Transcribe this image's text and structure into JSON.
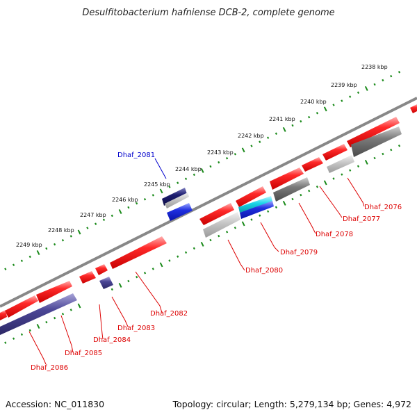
{
  "title": "Desulfitobacterium hafniense DCB-2, complete genome",
  "accession": "Accession: NC_011830",
  "summary": "Topology: circular; Length: 5,279,134 bp; Genes: 4,972",
  "colors": {
    "backbone": "#888888",
    "tick": "#1a8a1a",
    "gene_red": "#ee1c1c",
    "gene_gray": "#777777",
    "gene_lightgray": "#bbbbbb",
    "gene_darkblue": "#23236f",
    "gene_blue": "#1f2fe0",
    "gene_purple": "#4b4696",
    "gene_cyan": "#18d4e8",
    "label_red": "#dd0000",
    "label_blue": "#0000cc"
  },
  "kbp_labels": [
    "2238 kbp",
    "2239 kbp",
    "2240 kbp",
    "2241 kbp",
    "2242 kbp",
    "2243 kbp",
    "2244 kbp",
    "2245 kbp",
    "2246 kbp",
    "2247 kbp",
    "2248 kbp",
    "2249 kbp"
  ],
  "gene_labels": [
    "Dhaf_2076",
    "Dhaf_2077",
    "Dhaf_2078",
    "Dhaf_2079",
    "Dhaf_2080",
    "Dhaf_2081",
    "Dhaf_2082",
    "Dhaf_2083",
    "Dhaf_2084",
    "Dhaf_2085",
    "Dhaf_2086"
  ]
}
